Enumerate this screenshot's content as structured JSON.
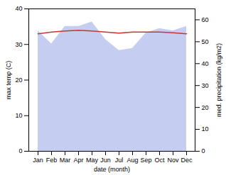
{
  "chart_data": {
    "type": "line",
    "xlabel": "date (month)",
    "ylabel": "max temp (C)",
    "y2label": "med. precipitation (kg/m2)",
    "categories": [
      "Jan",
      "Feb",
      "Mar",
      "Apr",
      "May",
      "Jun",
      "Jul",
      "Aug",
      "Sep",
      "Oct",
      "Nov",
      "Dec"
    ],
    "series": [
      {
        "type": "area",
        "axis": "y2",
        "color": "#c5cef0",
        "values": [
          55,
          49,
          57,
          57,
          59,
          51,
          46,
          47,
          54,
          56,
          55,
          57
        ]
      },
      {
        "type": "line",
        "color": "#cc3333",
        "values": [
          33.0,
          33.5,
          33.8,
          34.0,
          33.8,
          33.5,
          33.2,
          33.5,
          33.5,
          33.5,
          33.3,
          33.0
        ]
      }
    ],
    "ylim": [
      0,
      40
    ],
    "yticks": [
      0,
      10,
      20,
      30,
      40
    ],
    "y2lim": [
      0,
      65
    ],
    "y2ticks": [
      0,
      10,
      20,
      30,
      40,
      50,
      60
    ],
    "grid": false
  }
}
